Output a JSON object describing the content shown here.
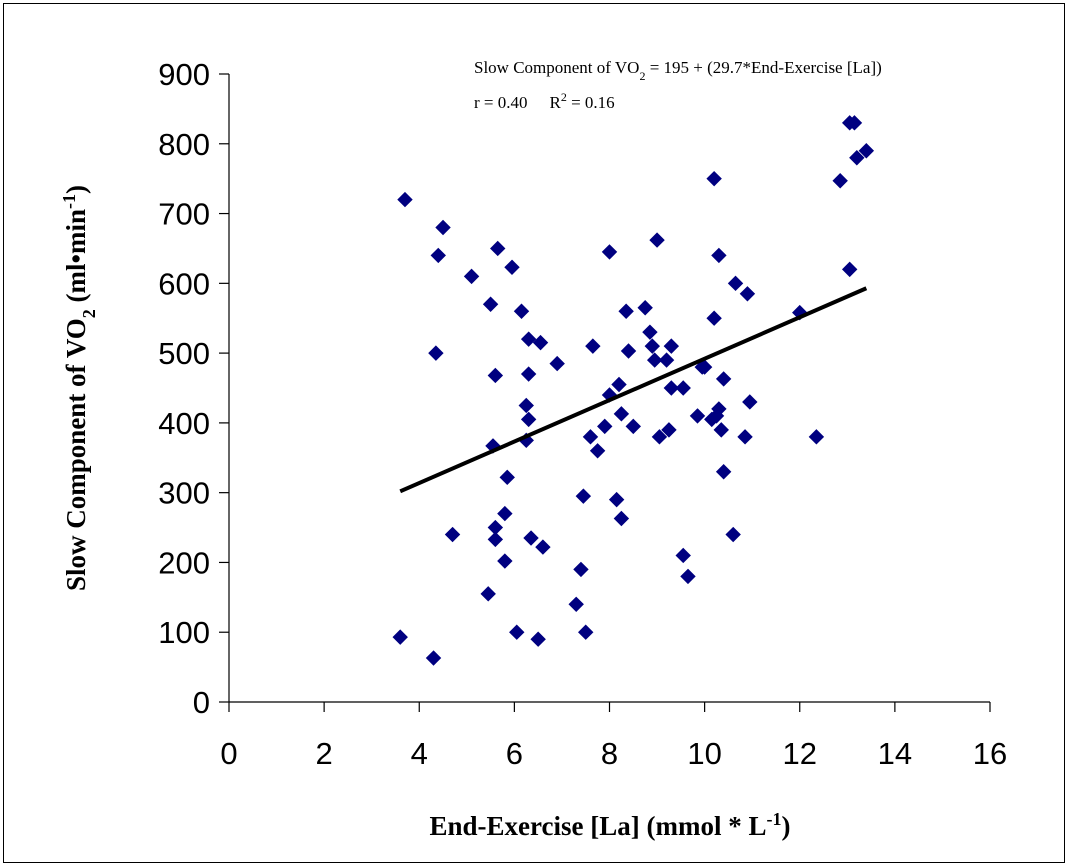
{
  "chart_data": {
    "type": "scatter",
    "title": "",
    "xlabel": "End-Exercise [La] (mmol * L",
    "xlabel_sup": "-1",
    "xlabel_tail": ")",
    "ylabel": "Slow Component of VO",
    "ylabel_sub": "2",
    "ylabel_mid": " (ml•min",
    "ylabel_sup": "-1",
    "ylabel_tail": ")",
    "xlim": [
      0,
      16
    ],
    "ylim": [
      0,
      900
    ],
    "xticks": [
      "0",
      "2",
      "4",
      "6",
      "8",
      "10",
      "12",
      "14",
      "16"
    ],
    "yticks": [
      "0",
      "100",
      "200",
      "300",
      "400",
      "500",
      "600",
      "700",
      "800",
      "900"
    ],
    "grid": false,
    "legend": "none",
    "marker": "diamond",
    "marker_color": "#000080",
    "line_color": "#000000",
    "annotation": {
      "eq_prefix": "Slow Component of VO",
      "eq_sub": "2",
      "eq_rest": " = 195 + (29.7*End-Exercise [La])",
      "r_text": "r = 0.40",
      "r2_prefix": "R",
      "r2_sup": "2",
      "r2_rest": " = 0.16"
    },
    "regression": {
      "intercept": 195,
      "slope": 29.7,
      "x_range": [
        3.6,
        13.4
      ]
    },
    "points": [
      [
        3.6,
        93
      ],
      [
        3.7,
        720
      ],
      [
        4.3,
        63
      ],
      [
        4.35,
        500
      ],
      [
        4.4,
        640
      ],
      [
        4.5,
        680
      ],
      [
        4.7,
        240
      ],
      [
        5.1,
        610
      ],
      [
        5.45,
        155
      ],
      [
        5.5,
        570
      ],
      [
        5.55,
        367
      ],
      [
        5.6,
        468
      ],
      [
        5.6,
        250
      ],
      [
        5.6,
        233
      ],
      [
        5.65,
        650
      ],
      [
        5.8,
        270
      ],
      [
        5.8,
        202
      ],
      [
        5.85,
        322
      ],
      [
        5.95,
        623
      ],
      [
        6.05,
        100
      ],
      [
        6.15,
        560
      ],
      [
        6.25,
        375
      ],
      [
        6.25,
        425
      ],
      [
        6.3,
        470
      ],
      [
        6.3,
        405
      ],
      [
        6.3,
        520
      ],
      [
        6.35,
        235
      ],
      [
        6.5,
        90
      ],
      [
        6.55,
        515
      ],
      [
        6.6,
        222
      ],
      [
        6.9,
        485
      ],
      [
        7.3,
        140
      ],
      [
        7.4,
        190
      ],
      [
        7.45,
        295
      ],
      [
        7.5,
        100
      ],
      [
        7.6,
        380
      ],
      [
        7.65,
        510
      ],
      [
        7.75,
        360
      ],
      [
        7.9,
        395
      ],
      [
        8.0,
        440
      ],
      [
        8.0,
        645
      ],
      [
        8.15,
        290
      ],
      [
        8.2,
        455
      ],
      [
        8.25,
        263
      ],
      [
        8.25,
        413
      ],
      [
        8.35,
        560
      ],
      [
        8.4,
        503
      ],
      [
        8.5,
        395
      ],
      [
        8.75,
        565
      ],
      [
        8.85,
        530
      ],
      [
        8.9,
        510
      ],
      [
        8.95,
        490
      ],
      [
        9.0,
        662
      ],
      [
        9.05,
        380
      ],
      [
        9.2,
        490
      ],
      [
        9.25,
        390
      ],
      [
        9.3,
        510
      ],
      [
        9.3,
        450
      ],
      [
        9.55,
        210
      ],
      [
        9.55,
        450
      ],
      [
        9.65,
        180
      ],
      [
        9.85,
        410
      ],
      [
        9.95,
        480
      ],
      [
        10.0,
        480
      ],
      [
        10.15,
        405
      ],
      [
        10.2,
        550
      ],
      [
        10.2,
        750
      ],
      [
        10.25,
        410
      ],
      [
        10.3,
        420
      ],
      [
        10.3,
        640
      ],
      [
        10.35,
        390
      ],
      [
        10.4,
        463
      ],
      [
        10.4,
        330
      ],
      [
        10.6,
        240
      ],
      [
        10.65,
        600
      ],
      [
        10.85,
        380
      ],
      [
        10.9,
        585
      ],
      [
        10.95,
        430
      ],
      [
        12.0,
        558
      ],
      [
        12.35,
        380
      ],
      [
        12.85,
        747
      ],
      [
        13.05,
        620
      ],
      [
        13.05,
        830
      ],
      [
        13.15,
        830
      ],
      [
        13.2,
        780
      ],
      [
        13.4,
        790
      ]
    ]
  }
}
